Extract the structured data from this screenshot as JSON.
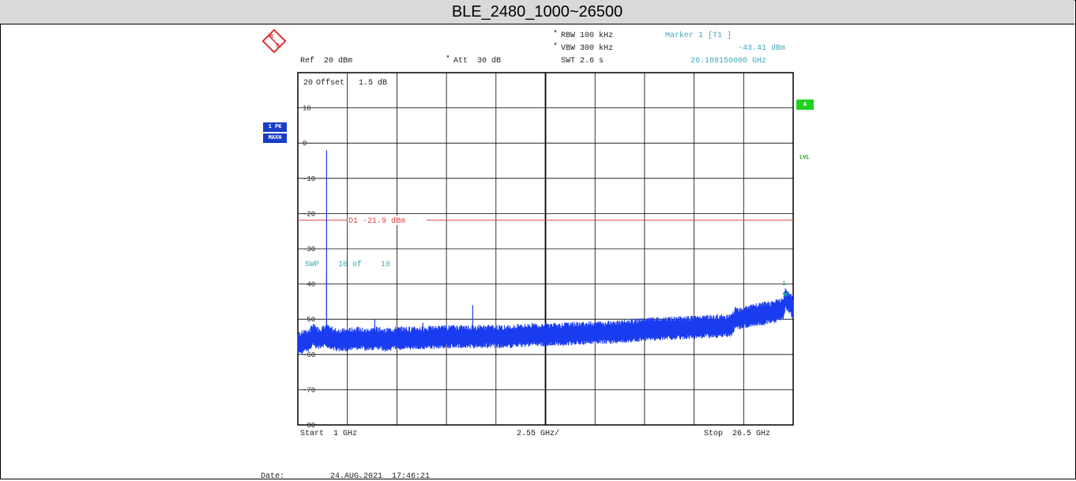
{
  "title": "BLE_2480_1000~26500",
  "header": {
    "rbw": "RBW 100 kHz",
    "vbw": "VBW 300 kHz",
    "swt": "SWT 2.6 s",
    "ref": "Ref  20 dBm",
    "att": "Att  30 dB",
    "marker_label": "Marker 1 [T1 ]",
    "marker_level": "-43.41 dBm",
    "marker_freq": "26.108150000 GHz"
  },
  "side": {
    "trace_mode": "1 PK",
    "trace_hold": "MAXH",
    "a_badge": "A",
    "lvl": "LVL"
  },
  "plot_text": {
    "offset": "Offset   1.5 dB",
    "sweep": "SWP    10 of    10",
    "marker_num": "1"
  },
  "footer": {
    "start": "Start  1 GHz",
    "span": "2.55 GHz/",
    "stop": "Stop  26.5 GHz",
    "date_label": "Date:",
    "date_value": "24.AUG.2021  17:46:21"
  },
  "colors": {
    "trace": "#1a3cf0",
    "limit": "#e04040",
    "marker": "#1aa0a0",
    "badge_blue": "#1a3cc8",
    "badge_green": "#22d022"
  },
  "chart_data": {
    "type": "line",
    "xlabel": "",
    "ylabel": "",
    "xlim": [
      1,
      26.5
    ],
    "ylim": [
      -80,
      20
    ],
    "x_unit": "GHz",
    "y_unit": "dBm",
    "y_ticks": [
      20,
      10,
      0,
      -10,
      -20,
      -30,
      -40,
      -50,
      -60,
      -70,
      -80
    ],
    "grid": true,
    "limit_line": {
      "name": "D1",
      "label": "D1  -21.9  dBm",
      "value": -21.9
    },
    "marker": {
      "name": "Marker 1",
      "x": 26.10815,
      "y": -43.41
    },
    "series": [
      {
        "values": [
          [
            1.0,
            -56.5
          ],
          [
            1.6,
            -55.5
          ],
          [
            1.75,
            -54.0
          ],
          [
            2.0,
            -55.0
          ],
          [
            2.5,
            -54.5
          ],
          [
            3.0,
            -55.5
          ],
          [
            3.5,
            -55.5
          ],
          [
            4.0,
            -55.0
          ],
          [
            4.5,
            -55.5
          ],
          [
            5.0,
            -55.0
          ],
          [
            5.5,
            -55.5
          ],
          [
            6.0,
            -55.0
          ],
          [
            7.0,
            -55.0
          ],
          [
            8.0,
            -54.8
          ],
          [
            9.0,
            -54.5
          ],
          [
            10.0,
            -54.5
          ],
          [
            11.0,
            -54.5
          ],
          [
            12.0,
            -54.5
          ],
          [
            13.0,
            -54.0
          ],
          [
            14.0,
            -54.0
          ],
          [
            15.0,
            -53.8
          ],
          [
            16.0,
            -53.5
          ],
          [
            17.0,
            -53.3
          ],
          [
            18.0,
            -53.0
          ],
          [
            19.0,
            -52.5
          ],
          [
            20.0,
            -52.3
          ],
          [
            21.0,
            -52.0
          ],
          [
            22.0,
            -51.8
          ],
          [
            23.0,
            -51.5
          ],
          [
            23.3,
            -51.5
          ],
          [
            23.5,
            -49.5
          ],
          [
            24.0,
            -49.0
          ],
          [
            24.5,
            -48.5
          ],
          [
            25.0,
            -48.0
          ],
          [
            25.5,
            -47.5
          ],
          [
            26.0,
            -46.5
          ],
          [
            26.1,
            -43.41
          ],
          [
            26.5,
            -46.5
          ]
        ]
      }
    ],
    "spikes": [
      [
        2.48,
        -2.0
      ],
      [
        2.48,
        -37.0
      ],
      [
        4.96,
        -50.0
      ],
      [
        7.44,
        -51.0
      ],
      [
        10.0,
        -46.0
      ],
      [
        1.8,
        -52.5
      ],
      [
        12.5,
        -51.5
      ],
      [
        17.5,
        -51.8
      ],
      [
        21.0,
        -50.5
      ]
    ]
  }
}
